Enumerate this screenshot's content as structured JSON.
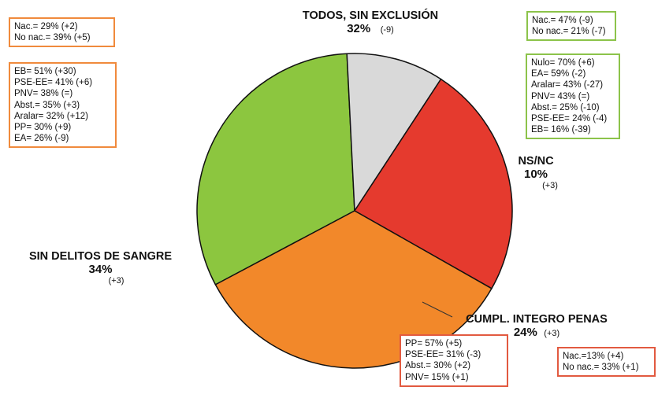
{
  "chart_data": {
    "type": "pie",
    "slices": [
      {
        "label": "TODOS, SIN EXCLUSIÓN",
        "value": 32,
        "pct_text": "32%",
        "change": "(-9)",
        "color": "#8cc63f"
      },
      {
        "label": "NS/NC",
        "value": 10,
        "pct_text": "10%",
        "change": "(+3)",
        "color": "#d9d9d9"
      },
      {
        "label": "CUMPL. INTEGRO PENAS",
        "value": 24,
        "pct_text": "24%",
        "change": "(+3)",
        "color": "#e53a2e"
      },
      {
        "label": "SIN DELITOS DE SANGRE",
        "value": 34,
        "pct_text": "34%",
        "change": "(+3)",
        "color": "#f2882a"
      }
    ],
    "start_angle_deg": 152,
    "direction": "clockwise"
  },
  "boxes": {
    "nac_orange": [
      "Nac.= 29% (+2)",
      "No nac.= 39% (+5)"
    ],
    "party_orange": [
      "EB= 51% (+30)",
      "PSE-EE= 41% (+6)",
      "PNV= 38% (=)",
      "Abst.= 35% (+3)",
      "Aralar= 32% (+12)",
      "PP= 30% (+9)",
      "EA= 26% (-9)"
    ],
    "nac_green": [
      "Nac.= 47% (-9)",
      "No nac.= 21% (-7)"
    ],
    "party_green": [
      "Nulo= 70% (+6)",
      "EA= 59% (-2)",
      "Aralar= 43% (-27)",
      "PNV= 43% (=)",
      "Abst.= 25% (-10)",
      "PSE-EE= 24% (-4)",
      "EB= 16% (-39)"
    ],
    "party_red": [
      "PP= 57% (+5)",
      "PSE-EE= 31% (-3)",
      "Abst.= 30% (+2)",
      "PNV= 15% (+1)"
    ],
    "nac_red": [
      "Nac.=13% (+4)",
      "No nac.= 33% (+1)"
    ]
  },
  "colors": {
    "outline": "#111111",
    "leader": "#333333"
  }
}
